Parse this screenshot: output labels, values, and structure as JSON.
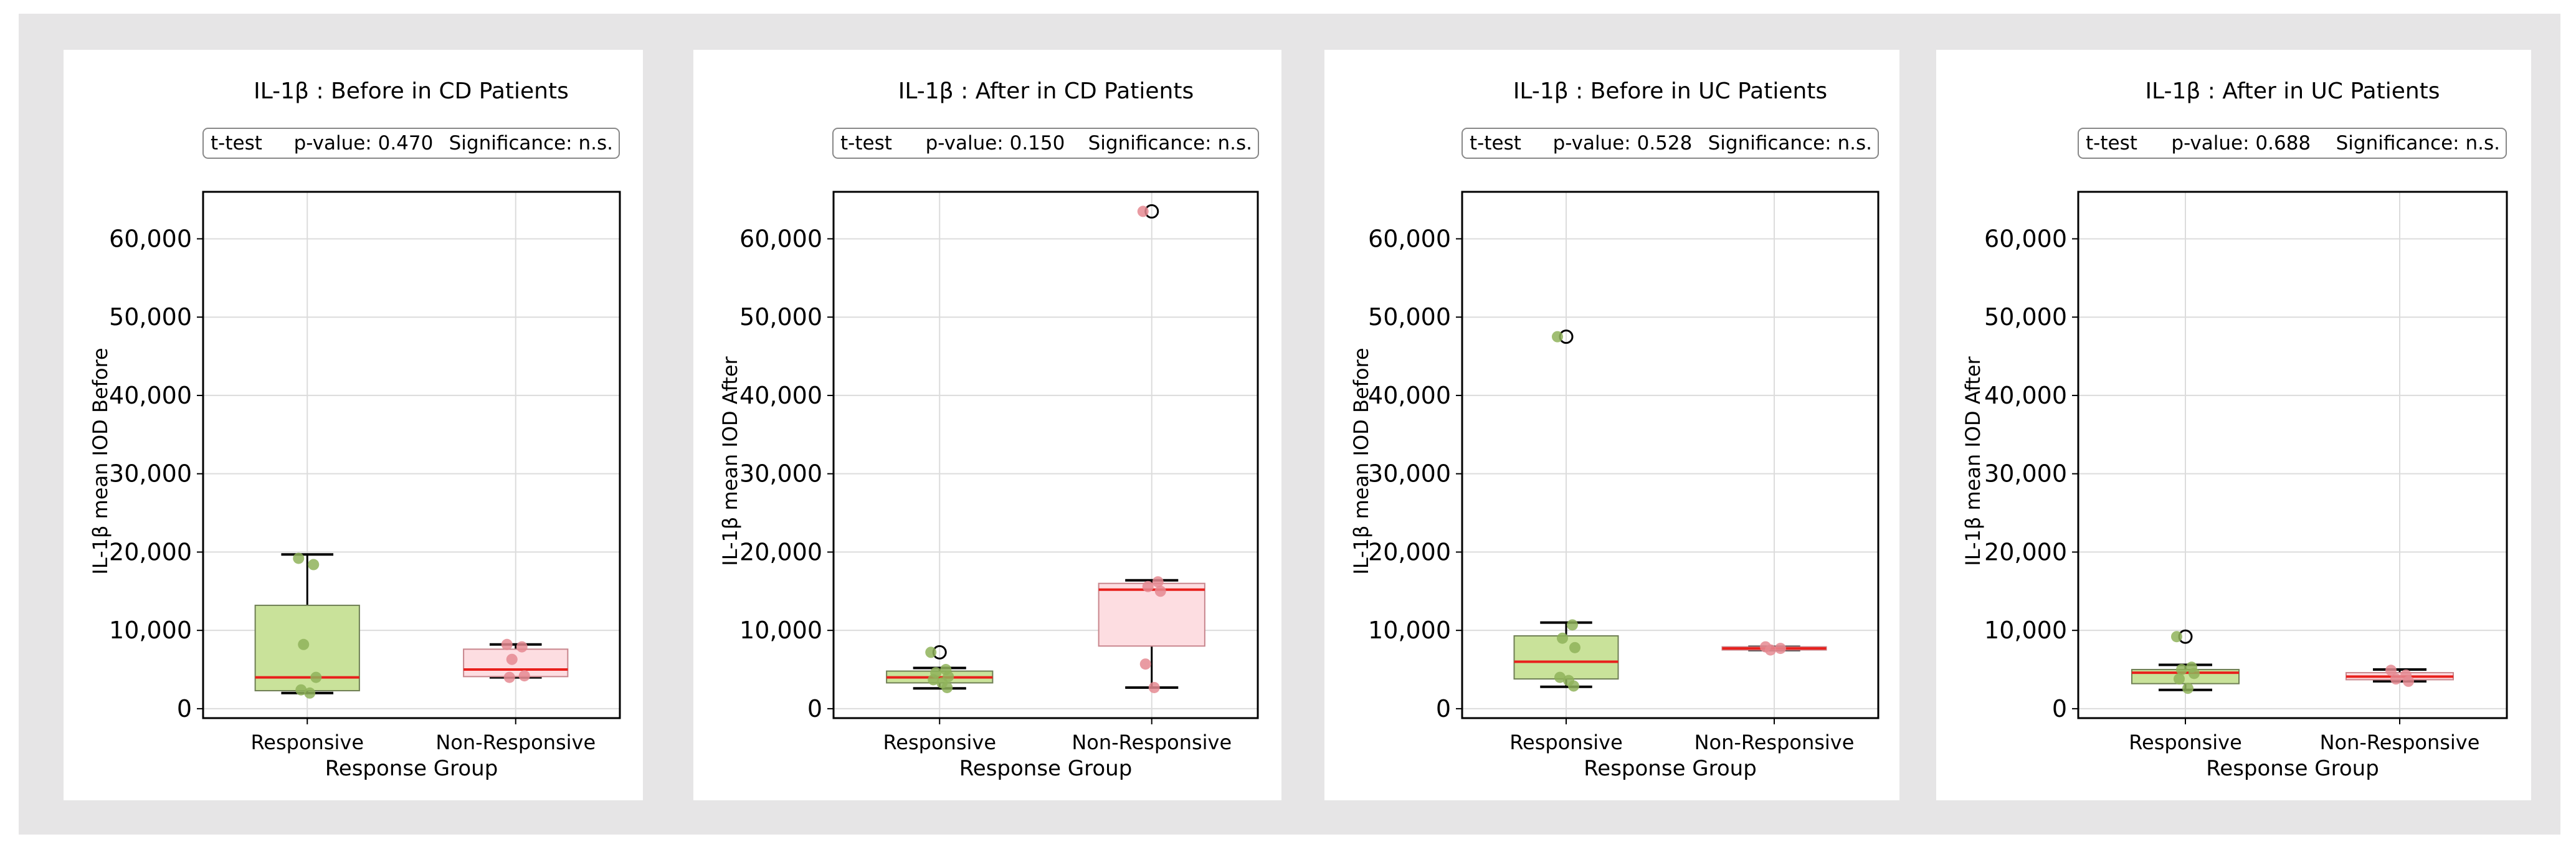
{
  "figure": {
    "background": "#e6e5e6",
    "panel_background": "#ffffff",
    "box_color_responsive": "#c9e29a",
    "box_edge_responsive": "#6f7f55",
    "box_color_nonresponsive": "#fddde1",
    "box_edge_nonresponsive": "#c8868d",
    "point_color_responsive": "#8fb35a",
    "point_color_nonresponsive": "#e58a92",
    "median_color": "#e8201c"
  },
  "chart_data": [
    {
      "type": "boxplot",
      "title": "IL-1β : Before in CD Patients",
      "stats_box": {
        "test": "t-test",
        "p_value": "p-value: 0.470",
        "significance": "Significance: n.s."
      },
      "xlabel": "Response Group",
      "ylabel": "IL-1β mean IOD Before",
      "ylim": [
        -1200,
        66000
      ],
      "yticks": [
        0,
        10000,
        20000,
        30000,
        40000,
        50000,
        60000
      ],
      "ytick_labels": [
        "0",
        "10,000",
        "20,000",
        "30,000",
        "40,000",
        "50,000",
        "60,000"
      ],
      "categories": [
        "Responsive",
        "Non-Responsive"
      ],
      "groups": [
        {
          "name": "Responsive",
          "whisker_low": 2000,
          "q1": 2300,
          "median": 4000,
          "q3": 13200,
          "whisker_high": 19700,
          "points": [
            19200,
            18400,
            8200,
            4000,
            2400,
            2000
          ],
          "outliers": []
        },
        {
          "name": "Non-Responsive",
          "whisker_low": 4000,
          "q1": 4100,
          "median": 5000,
          "q3": 7600,
          "whisker_high": 8200,
          "points": [
            8200,
            7900,
            6300,
            4200,
            4000
          ],
          "outliers": []
        }
      ]
    },
    {
      "type": "boxplot",
      "title": "IL-1β : After in CD Patients",
      "stats_box": {
        "test": "t-test",
        "p_value": "p-value: 0.150",
        "significance": "Significance: n.s."
      },
      "xlabel": "Response Group",
      "ylabel": "IL-1β mean IOD After",
      "ylim": [
        -1200,
        66000
      ],
      "yticks": [
        0,
        10000,
        20000,
        30000,
        40000,
        50000,
        60000
      ],
      "ytick_labels": [
        "0",
        "10,000",
        "20,000",
        "30,000",
        "40,000",
        "50,000",
        "60,000"
      ],
      "categories": [
        "Responsive",
        "Non-Responsive"
      ],
      "groups": [
        {
          "name": "Responsive",
          "whisker_low": 2600,
          "q1": 3300,
          "median": 4000,
          "q3": 4800,
          "whisker_high": 5200,
          "points": [
            7200,
            5000,
            4600,
            4100,
            3700,
            3300,
            2700
          ],
          "outliers": [
            7200
          ]
        },
        {
          "name": "Non-Responsive",
          "whisker_low": 2700,
          "q1": 8000,
          "median": 15200,
          "q3": 16000,
          "whisker_high": 16400,
          "points": [
            63500,
            16200,
            15600,
            15000,
            5700,
            2700
          ],
          "outliers": [
            63500
          ]
        }
      ]
    },
    {
      "type": "boxplot",
      "title": "IL-1β : Before in UC Patients",
      "stats_box": {
        "test": "t-test",
        "p_value": "p-value: 0.528",
        "significance": "Significance: n.s."
      },
      "xlabel": "Response Group",
      "ylabel": "IL-1β mean IOD Before",
      "ylim": [
        -1200,
        66000
      ],
      "yticks": [
        0,
        10000,
        20000,
        30000,
        40000,
        50000,
        60000
      ],
      "ytick_labels": [
        "0",
        "10,000",
        "20,000",
        "30,000",
        "40,000",
        "50,000",
        "60,000"
      ],
      "categories": [
        "Responsive",
        "Non-Responsive"
      ],
      "groups": [
        {
          "name": "Responsive",
          "whisker_low": 2800,
          "q1": 3800,
          "median": 6000,
          "q3": 9300,
          "whisker_high": 11000,
          "points": [
            47500,
            10700,
            9000,
            7800,
            4000,
            3600,
            2900
          ],
          "outliers": [
            47500
          ]
        },
        {
          "name": "Non-Responsive",
          "whisker_low": 7500,
          "q1": 7500,
          "median": 7700,
          "q3": 7900,
          "whisker_high": 7900,
          "points": [
            7900,
            7700,
            7500
          ],
          "outliers": []
        }
      ]
    },
    {
      "type": "boxplot",
      "title": "IL-1β : After in UC Patients",
      "stats_box": {
        "test": "t-test",
        "p_value": "p-value: 0.688",
        "significance": "Significance: n.s."
      },
      "xlabel": "Response Group",
      "ylabel": "IL-1β mean IOD After",
      "ylim": [
        -1200,
        66000
      ],
      "yticks": [
        0,
        10000,
        20000,
        30000,
        40000,
        50000,
        60000
      ],
      "ytick_labels": [
        "0",
        "10,000",
        "20,000",
        "30,000",
        "40,000",
        "50,000",
        "60,000"
      ],
      "categories": [
        "Responsive",
        "Non-Responsive"
      ],
      "groups": [
        {
          "name": "Responsive",
          "whisker_low": 2400,
          "q1": 3200,
          "median": 4600,
          "q3": 5000,
          "whisker_high": 5600,
          "points": [
            9200,
            5300,
            5000,
            4500,
            3800,
            2600
          ],
          "outliers": [
            9200
          ]
        },
        {
          "name": "Non-Responsive",
          "whisker_low": 3500,
          "q1": 3700,
          "median": 4100,
          "q3": 4600,
          "whisker_high": 5000,
          "points": [
            4900,
            4300,
            3800,
            3500
          ],
          "outliers": []
        }
      ]
    }
  ]
}
